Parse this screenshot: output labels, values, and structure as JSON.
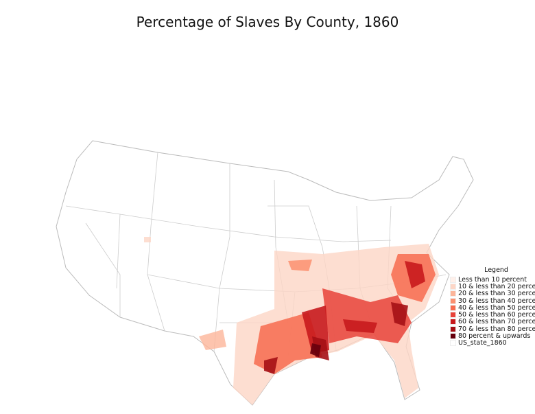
{
  "title": "Percentage of Slaves By County, 1860",
  "legend": {
    "title": "Legend",
    "items": [
      {
        "label": "Less than 10 percent",
        "color": "#fff0ea"
      },
      {
        "label": "10 & less than 20 percent",
        "color": "#fdd6c6"
      },
      {
        "label": "20 & less than 30 percent",
        "color": "#fcb59a"
      },
      {
        "label": "30 & less than 40 percent",
        "color": "#fb9070"
      },
      {
        "label": "40 & less than 50 percent",
        "color": "#f76b4f"
      },
      {
        "label": "50 & less than 60 percent",
        "color": "#e8433a"
      },
      {
        "label": "60 & less than 70 percent",
        "color": "#c8191d"
      },
      {
        "label": "70 & less than 80 percent",
        "color": "#a50f15"
      },
      {
        "label": "80 percent & upwards",
        "color": "#67000d"
      },
      {
        "label": "US_state_1860",
        "color": "#ffffff"
      }
    ]
  }
}
